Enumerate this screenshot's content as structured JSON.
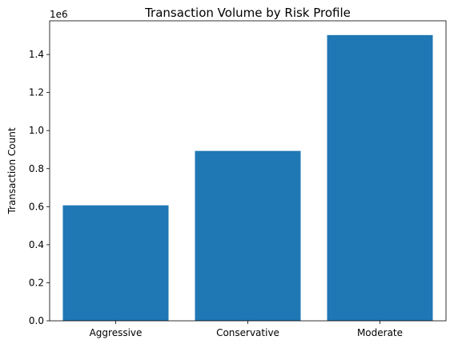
{
  "chart_data": {
    "type": "bar",
    "title": "Transaction Volume by Risk Profile",
    "xlabel": "",
    "ylabel": "Transaction Count",
    "categories": [
      "Aggressive",
      "Conservative",
      "Moderate"
    ],
    "values": [
      607000,
      893000,
      1502000
    ],
    "ylim": [
      0,
      1577000
    ],
    "yticks": [
      0,
      200000,
      400000,
      600000,
      800000,
      1000000,
      1200000,
      1400000
    ],
    "ytick_labels": [
      "0.0",
      "0.2",
      "0.4",
      "0.6",
      "0.8",
      "1.0",
      "1.2",
      "1.4"
    ],
    "y_offset_label": "1e6",
    "bar_color": "#1f77b4",
    "grid": false,
    "legend": "none"
  }
}
